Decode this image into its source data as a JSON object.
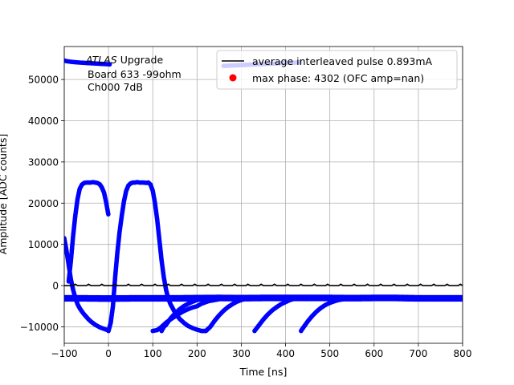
{
  "chart_data": {
    "type": "scatter",
    "title": "",
    "xlabel": "Time [ns]",
    "ylabel": "Amplitude [ADC counts]",
    "xlim": [
      -100,
      800
    ],
    "ylim": [
      -14000,
      58000
    ],
    "grid": true,
    "xticks": [
      -100,
      0,
      100,
      200,
      300,
      400,
      500,
      600,
      700,
      800
    ],
    "yticks": [
      -10000,
      0,
      10000,
      20000,
      30000,
      40000,
      50000
    ],
    "xtick_labels": [
      "−100",
      "0",
      "100",
      "200",
      "300",
      "400",
      "500",
      "600",
      "700",
      "800"
    ],
    "ytick_labels": [
      "−10000",
      "0",
      "10000",
      "20000",
      "30000",
      "40000",
      "50000"
    ],
    "annotation": {
      "lines": [
        "ATLAS Upgrade",
        "Board 633 -99ohm",
        "Ch000 7dB"
      ],
      "italic_word": "ATLAS",
      "rest_of_first_line": " Upgrade"
    },
    "legend": {
      "placement": "top-right",
      "entries": [
        {
          "label": "average interleaved pulse 0.893mA",
          "marker": "line",
          "color": "#000000"
        },
        {
          "label": "max phase: 4302 (OFC amp=nan)",
          "marker": "dot",
          "color": "#ff0000"
        }
      ]
    },
    "series": [
      {
        "name": "interleaved samples",
        "style": "dots",
        "color": "#0000ff",
        "segments": [
          {
            "x": [
              -100,
              -95,
              -85,
              -70,
              -50,
              -25,
              0,
              5
            ],
            "y": [
              54600,
              54450,
              54300,
              54150,
              54000,
              53850,
              53700,
              53650
            ]
          },
          {
            "x": [
              260,
              280,
              300,
              330,
              350,
              380,
              400,
              420,
              435
            ],
            "y": [
              53300,
              53400,
              53500,
              53650,
              53750,
              53900,
              54000,
              54100,
              54200
            ]
          },
          {
            "x": [
              -90,
              -85,
              -80,
              -75,
              -70,
              -65,
              -60,
              -55,
              -50,
              -45,
              -40,
              -35,
              -30,
              -25,
              -20,
              -15,
              -10,
              -5,
              0
            ],
            "y": [
              1000,
              6000,
              12000,
              17000,
              21000,
              23500,
              24500,
              24900,
              25000,
              25000,
              25000,
              25100,
              25000,
              24900,
              24600,
              23800,
              22500,
              20000,
              17000
            ]
          },
          {
            "x": [
              0,
              5,
              10,
              15,
              20,
              25,
              30,
              35,
              40,
              45,
              50,
              55,
              60,
              65,
              70,
              75,
              80,
              85,
              90,
              95,
              100,
              105,
              110,
              115,
              120,
              125,
              130,
              135,
              140,
              145,
              150,
              160,
              170,
              180,
              190,
              200,
              210,
              220
            ],
            "y": [
              -11000,
              -9000,
              -5000,
              2000,
              8000,
              13000,
              17000,
              20500,
              23000,
              24300,
              24800,
              25000,
              25000,
              25100,
              25000,
              25000,
              25000,
              24900,
              25000,
              24500,
              23000,
              20000,
              16000,
              11000,
              6000,
              2000,
              -1000,
              -3200,
              -4500,
              -5500,
              -6500,
              -8000,
              -9000,
              -9800,
              -10300,
              -10700,
              -11000,
              -11000
            ]
          },
          {
            "x": [
              -100,
              -95,
              -90,
              -85,
              -80,
              -75,
              -70,
              -65,
              -60,
              -55,
              -50,
              -45,
              -40,
              -35,
              -30,
              -25,
              -20,
              -15,
              -10,
              -5,
              0
            ],
            "y": [
              11500,
              8500,
              5000,
              1500,
              -1000,
              -3000,
              -4500,
              -5500,
              -6300,
              -7000,
              -7600,
              -8200,
              -8700,
              -9100,
              -9500,
              -9800,
              -10100,
              -10300,
              -10500,
              -10700,
              -10900
            ]
          },
          {
            "x": [
              100,
              110,
              120,
              130,
              140,
              150,
              160,
              170,
              180,
              190,
              200,
              205,
              210,
              215,
              220,
              225,
              230,
              235,
              240,
              245,
              250,
              255,
              260
            ],
            "y": [
              -11000,
              -10800,
              -10000,
              -9000,
              -8200,
              -7500,
              -6800,
              -6200,
              -5700,
              -5300,
              -5000,
              -4700,
              -4400,
              -4200,
              -4000,
              -3800,
              -3700,
              -3600,
              -3500,
              -3400,
              -3300,
              -3200,
              -3100
            ]
          },
          {
            "x": [
              120,
              125,
              130,
              140,
              150,
              160,
              170,
              180,
              190,
              200,
              210,
              220
            ],
            "y": [
              -11000,
              -10000,
              -9500,
              -8000,
              -6800,
              -5800,
              -5000,
              -4400,
              -3900,
              -3500,
              -3300,
              -3100
            ]
          },
          {
            "x": [
              220,
              225,
              230,
              240,
              250,
              260,
              270,
              280,
              290,
              300,
              310,
              320
            ],
            "y": [
              -11000,
              -10500,
              -10000,
              -8500,
              -7200,
              -6100,
              -5200,
              -4500,
              -3900,
              -3500,
              -3200,
              -3000
            ]
          },
          {
            "x": [
              330,
              335,
              340,
              350,
              360,
              370,
              380,
              390,
              400,
              410,
              420,
              430
            ],
            "y": [
              -11000,
              -10300,
              -9600,
              -8200,
              -7000,
              -6000,
              -5200,
              -4500,
              -4000,
              -3500,
              -3200,
              -3000
            ]
          },
          {
            "x": [
              435,
              440,
              450,
              460,
              470,
              480,
              490,
              500,
              510,
              520,
              530,
              540,
              560,
              580,
              600,
              620,
              640,
              660
            ],
            "y": [
              -11000,
              -10200,
              -8700,
              -7400,
              -6300,
              -5400,
              -4700,
              -4200,
              -3800,
              -3500,
              -3300,
              -3200,
              -3100,
              -3050,
              -3000,
              -3000,
              -3000,
              -3000
            ]
          },
          {
            "x": [
              -100,
              -50,
              0,
              50,
              100,
              150,
              200,
              250,
              300,
              350,
              400,
              450,
              500,
              550,
              600,
              650,
              700,
              750,
              800
            ],
            "y": [
              -3100,
              -3100,
              -3150,
              -3100,
              -3100,
              -3100,
              -3050,
              -3000,
              -3050,
              -3000,
              -3000,
              -3000,
              -3000,
              -3050,
              -3000,
              -3000,
              -3100,
              -3100,
              -3100
            ],
            "thick": true
          }
        ]
      },
      {
        "name": "average interleaved pulse 0.893mA",
        "style": "line",
        "color": "#000000",
        "x": [
          -100,
          -90,
          -80,
          -75,
          -70,
          -60,
          -50,
          -45,
          -40,
          -30,
          -20,
          -15,
          -10,
          0,
          10,
          15,
          20,
          30,
          40,
          45,
          50,
          60,
          70,
          75,
          80,
          90,
          100,
          105,
          110,
          120,
          130,
          135,
          140,
          150,
          160,
          165,
          170,
          180,
          190,
          195,
          200,
          210,
          220,
          225,
          230,
          240,
          250,
          255,
          260,
          270,
          280,
          285,
          290,
          300,
          310,
          315,
          320,
          330,
          340,
          345,
          350,
          360,
          370,
          375,
          380,
          390,
          400,
          405,
          410,
          420,
          430,
          435,
          440,
          450,
          460,
          465,
          470,
          480,
          490,
          495,
          500,
          510,
          520,
          525,
          530,
          540,
          550,
          555,
          560,
          570,
          580,
          585,
          590,
          600,
          610,
          615,
          620,
          630,
          640,
          645,
          650,
          660,
          670,
          675,
          680,
          690,
          700,
          705,
          710,
          720,
          730,
          735,
          740,
          750,
          760,
          765,
          770,
          780,
          790,
          795,
          800
        ],
        "y": [
          0,
          0,
          0,
          350,
          0,
          0,
          0,
          350,
          0,
          0,
          0,
          350,
          0,
          0,
          0,
          350,
          0,
          0,
          0,
          350,
          0,
          0,
          0,
          350,
          0,
          0,
          0,
          350,
          0,
          0,
          0,
          350,
          0,
          0,
          0,
          350,
          0,
          0,
          0,
          350,
          0,
          0,
          0,
          350,
          0,
          0,
          0,
          350,
          0,
          0,
          0,
          350,
          0,
          0,
          0,
          350,
          0,
          0,
          0,
          350,
          0,
          0,
          0,
          350,
          0,
          0,
          0,
          350,
          0,
          0,
          0,
          350,
          0,
          0,
          0,
          350,
          0,
          0,
          0,
          350,
          0,
          0,
          0,
          350,
          0,
          0,
          0,
          350,
          0,
          0,
          0,
          350,
          0,
          0,
          0,
          350,
          0,
          0,
          0,
          350,
          0,
          0,
          0,
          350,
          0,
          0,
          0,
          350,
          0,
          0,
          0,
          350,
          0,
          0,
          0,
          350,
          0,
          0,
          0,
          350,
          0
        ]
      }
    ]
  }
}
